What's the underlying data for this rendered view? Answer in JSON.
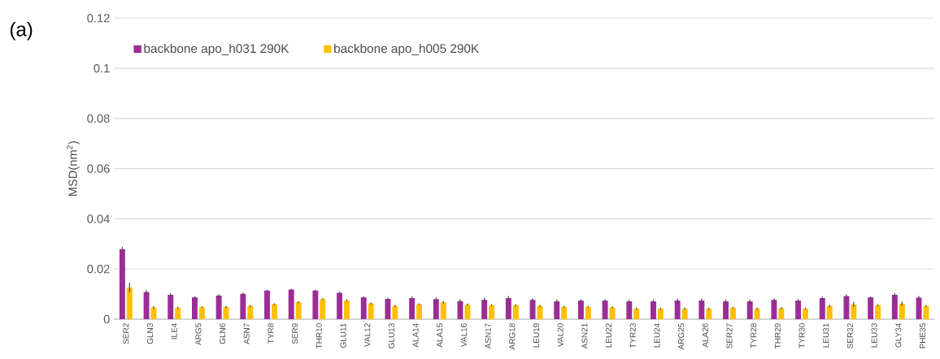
{
  "chart_data": {
    "type": "bar",
    "ylabel": "MSD(nm$^{2}$)",
    "annotations": [
      "(a)"
    ],
    "categories": [
      "SER2",
      "GLN3",
      "ILE4",
      "ARG5",
      "GLN6",
      "ASN7",
      "TYR8",
      "SER9",
      "THR10",
      "GLU11",
      "VAL12",
      "GLU13",
      "ALA14",
      "ALA15",
      "VAL16",
      "ASN17",
      "ARG18",
      "LEU19",
      "VAL20",
      "ASN21",
      "LEU22",
      "TYR23",
      "LEU24",
      "ARG25",
      "ALA26",
      "SER27",
      "TYR28",
      "THR29",
      "TYR30",
      "LEU31",
      "SER32",
      "LEU33",
      "GLY34",
      "PHE35"
    ],
    "series": [
      {
        "name": "backbone apo_h031 290K",
        "color": "#9b2d96",
        "values": [
          0.0279,
          0.0108,
          0.0097,
          0.0087,
          0.0094,
          0.0101,
          0.0114,
          0.0118,
          0.0114,
          0.0105,
          0.0087,
          0.0081,
          0.0084,
          0.008,
          0.0072,
          0.0077,
          0.0084,
          0.0077,
          0.0071,
          0.0074,
          0.0074,
          0.0071,
          0.0071,
          0.0074,
          0.0074,
          0.0071,
          0.0071,
          0.0077,
          0.0074,
          0.0084,
          0.0092,
          0.0087,
          0.0097,
          0.0086
        ],
        "errors": [
          0.0008,
          0.0006,
          0.0005,
          0.0003,
          0.0004,
          0.0003,
          0.0001,
          0.0002,
          0.0001,
          0.0003,
          0.0002,
          0.0002,
          0.0005,
          0.0005,
          0.0005,
          0.0007,
          0.0007,
          0.0004,
          0.0006,
          0.0004,
          0.0004,
          0.0004,
          0.0005,
          0.0006,
          0.0006,
          0.0006,
          0.0006,
          0.0004,
          0.0005,
          0.0005,
          0.0004,
          0.0002,
          0.0005,
          0.0005
        ]
      },
      {
        "name": "backbone apo_h005 290K",
        "color": "#ffc000",
        "values": [
          0.0126,
          0.0047,
          0.0046,
          0.0048,
          0.0049,
          0.0053,
          0.006,
          0.0068,
          0.008,
          0.0074,
          0.0063,
          0.0053,
          0.006,
          0.0067,
          0.0058,
          0.0056,
          0.0056,
          0.0053,
          0.0049,
          0.0049,
          0.0047,
          0.0042,
          0.0042,
          0.0042,
          0.0042,
          0.0046,
          0.0042,
          0.0044,
          0.0042,
          0.0053,
          0.0059,
          0.0056,
          0.0062,
          0.0053
        ],
        "errors": [
          0.0018,
          0.0003,
          0.0002,
          0.0002,
          0.0002,
          0.0002,
          0.0002,
          0.0002,
          0.0002,
          0.0003,
          0.0002,
          0.0002,
          0.0002,
          0.0003,
          0.0002,
          0.0002,
          0.0002,
          0.0002,
          0.0002,
          0.0002,
          0.0002,
          0.0002,
          0.0002,
          0.0002,
          0.0002,
          0.0002,
          0.0002,
          0.0002,
          0.0002,
          0.0003,
          0.0008,
          0.0003,
          0.0007,
          0.0002
        ]
      }
    ],
    "ylim": [
      0,
      0.12
    ],
    "yticks": [
      0,
      0.02,
      0.04,
      0.06,
      0.08,
      0.1,
      0.12
    ],
    "grid": "y",
    "legend": "top left"
  }
}
